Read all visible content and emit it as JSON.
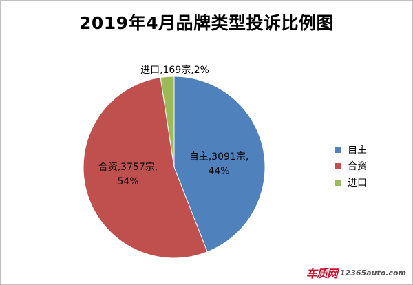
{
  "chart_data": {
    "type": "pie",
    "title": "2019年4月品牌类型投诉比例图",
    "slices": [
      {
        "name": "自主",
        "value": 3091,
        "unit": "宗",
        "percent": "44%",
        "color": "#4f81bd"
      },
      {
        "name": "合资",
        "value": 3757,
        "unit": "宗",
        "percent": "54%",
        "color": "#c0504d"
      },
      {
        "name": "进口",
        "value": 169,
        "unit": "宗",
        "percent": "2%",
        "color": "#9bbb59"
      }
    ],
    "legend_position": "right"
  },
  "watermark": {
    "logo": "车质网",
    "url": "12365auto.com"
  }
}
